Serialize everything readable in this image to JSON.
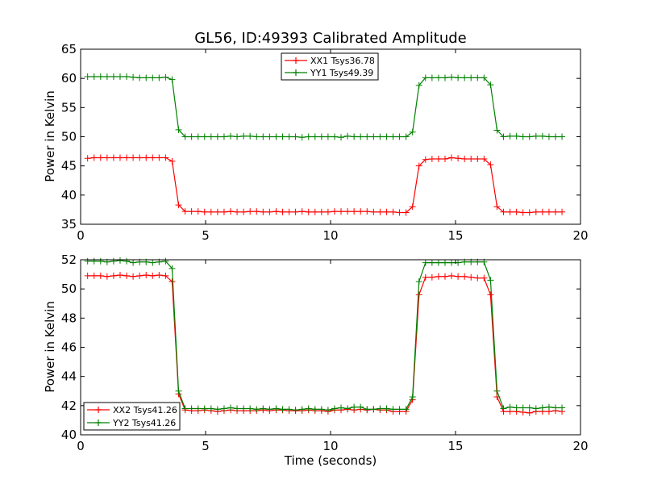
{
  "chart_data": [
    {
      "type": "line",
      "title": "GL56, ID:49393 Calibrated Amplitude",
      "xlabel": "",
      "ylabel": "Power in Kelvin",
      "xlim": [
        0,
        20
      ],
      "ylim": [
        35,
        65
      ],
      "xticks": [
        "0",
        "5",
        "10",
        "15",
        "20"
      ],
      "yticks": [
        "35",
        "40",
        "45",
        "50",
        "55",
        "60",
        "65"
      ],
      "legend_position": "top-center",
      "grid": false,
      "series": [
        {
          "name": "XX1 Tsys36.78",
          "color": "#ff0000",
          "marker": "plus",
          "x": [
            0.28,
            0.54,
            0.8,
            1.06,
            1.32,
            1.58,
            1.84,
            2.1,
            2.36,
            2.62,
            2.88,
            3.14,
            3.4,
            3.66,
            3.92,
            4.18,
            4.44,
            4.7,
            4.96,
            5.22,
            5.48,
            5.74,
            6.0,
            6.26,
            6.52,
            6.78,
            7.04,
            7.3,
            7.56,
            7.82,
            8.08,
            8.34,
            8.6,
            8.86,
            9.12,
            9.38,
            9.64,
            9.9,
            10.16,
            10.42,
            10.68,
            10.94,
            11.2,
            11.46,
            11.72,
            11.98,
            12.24,
            12.5,
            12.76,
            13.02,
            13.28,
            13.54,
            13.8,
            14.06,
            14.32,
            14.58,
            14.84,
            15.1,
            15.36,
            15.62,
            15.88,
            16.14,
            16.4,
            16.66,
            16.92,
            17.18,
            17.44,
            17.7,
            17.96,
            18.22,
            18.48,
            18.74,
            19.0,
            19.26
          ],
          "y": [
            46.3,
            46.4,
            46.4,
            46.4,
            46.4,
            46.4,
            46.4,
            46.4,
            46.4,
            46.4,
            46.4,
            46.4,
            46.4,
            45.8,
            38.3,
            37.2,
            37.2,
            37.2,
            37.1,
            37.1,
            37.1,
            37.1,
            37.2,
            37.1,
            37.1,
            37.2,
            37.2,
            37.1,
            37.1,
            37.2,
            37.1,
            37.1,
            37.1,
            37.2,
            37.1,
            37.1,
            37.1,
            37.1,
            37.2,
            37.2,
            37.2,
            37.2,
            37.2,
            37.2,
            37.1,
            37.1,
            37.1,
            37.1,
            37.0,
            37.0,
            38.0,
            45.0,
            46.1,
            46.2,
            46.2,
            46.2,
            46.4,
            46.3,
            46.2,
            46.2,
            46.2,
            46.2,
            45.2,
            38.0,
            37.1,
            37.1,
            37.1,
            37.0,
            37.0,
            37.1,
            37.1,
            37.1,
            37.1,
            37.1
          ]
        },
        {
          "name": "YY1 Tsys49.39",
          "color": "#008000",
          "marker": "plus",
          "x": [
            0.28,
            0.54,
            0.8,
            1.06,
            1.32,
            1.58,
            1.84,
            2.1,
            2.36,
            2.62,
            2.88,
            3.14,
            3.4,
            3.66,
            3.92,
            4.18,
            4.44,
            4.7,
            4.96,
            5.22,
            5.48,
            5.74,
            6.0,
            6.26,
            6.52,
            6.78,
            7.04,
            7.3,
            7.56,
            7.82,
            8.08,
            8.34,
            8.6,
            8.86,
            9.12,
            9.38,
            9.64,
            9.9,
            10.16,
            10.42,
            10.68,
            10.94,
            11.2,
            11.46,
            11.72,
            11.98,
            12.24,
            12.5,
            12.76,
            13.02,
            13.28,
            13.54,
            13.8,
            14.06,
            14.32,
            14.58,
            14.84,
            15.1,
            15.36,
            15.62,
            15.88,
            16.14,
            16.4,
            16.66,
            16.92,
            17.18,
            17.44,
            17.7,
            17.96,
            18.22,
            18.48,
            18.74,
            19.0,
            19.26
          ],
          "y": [
            60.3,
            60.3,
            60.3,
            60.3,
            60.3,
            60.3,
            60.3,
            60.2,
            60.1,
            60.1,
            60.1,
            60.1,
            60.2,
            59.8,
            51.2,
            50.0,
            50.0,
            50.0,
            50.0,
            50.0,
            50.0,
            50.0,
            50.1,
            50.0,
            50.1,
            50.1,
            50.0,
            50.0,
            50.0,
            50.0,
            50.0,
            50.0,
            50.0,
            49.9,
            50.0,
            50.0,
            50.0,
            50.0,
            50.0,
            49.9,
            50.1,
            50.0,
            50.0,
            50.0,
            50.0,
            50.0,
            50.0,
            50.0,
            50.0,
            50.0,
            50.8,
            58.8,
            60.1,
            60.1,
            60.1,
            60.1,
            60.2,
            60.1,
            60.1,
            60.1,
            60.1,
            60.1,
            58.9,
            51.1,
            50.0,
            50.1,
            50.1,
            50.0,
            50.0,
            50.1,
            50.1,
            50.0,
            50.0,
            50.0
          ]
        }
      ]
    },
    {
      "type": "line",
      "title": "",
      "xlabel": "Time (seconds)",
      "ylabel": "Power in Kelvin",
      "xlim": [
        0,
        20
      ],
      "ylim": [
        40,
        52
      ],
      "xticks": [
        "0",
        "5",
        "10",
        "15",
        "20"
      ],
      "yticks": [
        "40",
        "42",
        "44",
        "46",
        "48",
        "50",
        "52"
      ],
      "legend_position": "bottom-left",
      "grid": false,
      "series": [
        {
          "name": "XX2 Tsys41.26",
          "color": "#ff0000",
          "marker": "plus",
          "x": [
            0.28,
            0.54,
            0.8,
            1.06,
            1.32,
            1.58,
            1.84,
            2.1,
            2.36,
            2.62,
            2.88,
            3.14,
            3.4,
            3.66,
            3.92,
            4.18,
            4.44,
            4.7,
            4.96,
            5.22,
            5.48,
            5.74,
            6.0,
            6.26,
            6.52,
            6.78,
            7.04,
            7.3,
            7.56,
            7.82,
            8.08,
            8.34,
            8.6,
            8.86,
            9.12,
            9.38,
            9.64,
            9.9,
            10.16,
            10.42,
            10.68,
            10.94,
            11.2,
            11.46,
            11.72,
            11.98,
            12.24,
            12.5,
            12.76,
            13.02,
            13.28,
            13.54,
            13.8,
            14.06,
            14.32,
            14.58,
            14.84,
            15.1,
            15.36,
            15.62,
            15.88,
            16.14,
            16.4,
            16.66,
            16.92,
            17.18,
            17.44,
            17.7,
            17.96,
            18.22,
            18.48,
            18.74,
            19.0,
            19.26
          ],
          "y": [
            50.9,
            50.9,
            50.9,
            50.85,
            50.9,
            50.95,
            50.9,
            50.85,
            50.9,
            50.95,
            50.9,
            50.95,
            50.9,
            50.5,
            42.8,
            41.7,
            41.65,
            41.65,
            41.7,
            41.65,
            41.6,
            41.65,
            41.7,
            41.65,
            41.65,
            41.65,
            41.65,
            41.7,
            41.65,
            41.7,
            41.7,
            41.65,
            41.65,
            41.65,
            41.7,
            41.65,
            41.65,
            41.6,
            41.7,
            41.7,
            41.75,
            41.7,
            41.75,
            41.7,
            41.75,
            41.7,
            41.7,
            41.6,
            41.6,
            41.6,
            42.4,
            49.6,
            50.8,
            50.8,
            50.85,
            50.85,
            50.9,
            50.85,
            50.85,
            50.8,
            50.75,
            50.75,
            49.6,
            42.6,
            41.6,
            41.6,
            41.6,
            41.55,
            41.5,
            41.6,
            41.6,
            41.6,
            41.65,
            41.6
          ]
        },
        {
          "name": "YY2 Tsys41.26",
          "color": "#008000",
          "marker": "plus",
          "x": [
            0.28,
            0.54,
            0.8,
            1.06,
            1.32,
            1.58,
            1.84,
            2.1,
            2.36,
            2.62,
            2.88,
            3.14,
            3.4,
            3.66,
            3.92,
            4.18,
            4.44,
            4.7,
            4.96,
            5.22,
            5.48,
            5.74,
            6.0,
            6.26,
            6.52,
            6.78,
            7.04,
            7.3,
            7.56,
            7.82,
            8.08,
            8.34,
            8.6,
            8.86,
            9.12,
            9.38,
            9.64,
            9.9,
            10.16,
            10.42,
            10.68,
            10.94,
            11.2,
            11.46,
            11.72,
            11.98,
            12.24,
            12.5,
            12.76,
            13.02,
            13.28,
            13.54,
            13.8,
            14.06,
            14.32,
            14.58,
            14.84,
            15.1,
            15.36,
            15.62,
            15.88,
            16.14,
            16.4,
            16.66,
            16.92,
            17.18,
            17.44,
            17.7,
            17.96,
            18.22,
            18.48,
            18.74,
            19.0,
            19.26
          ],
          "y": [
            51.9,
            51.9,
            51.9,
            51.85,
            51.9,
            51.95,
            51.9,
            51.8,
            51.85,
            51.85,
            51.8,
            51.85,
            51.9,
            51.4,
            43.0,
            41.8,
            41.8,
            41.8,
            41.8,
            41.8,
            41.75,
            41.8,
            41.85,
            41.8,
            41.8,
            41.8,
            41.75,
            41.8,
            41.75,
            41.8,
            41.75,
            41.75,
            41.7,
            41.75,
            41.8,
            41.75,
            41.75,
            41.7,
            41.8,
            41.85,
            41.8,
            41.9,
            41.9,
            41.75,
            41.75,
            41.8,
            41.8,
            41.75,
            41.75,
            41.75,
            42.6,
            50.5,
            51.8,
            51.8,
            51.8,
            51.8,
            51.8,
            51.8,
            51.85,
            51.85,
            51.85,
            51.85,
            50.6,
            43.0,
            41.8,
            41.9,
            41.85,
            41.85,
            41.85,
            41.8,
            41.85,
            41.9,
            41.85,
            41.85
          ]
        }
      ]
    }
  ]
}
